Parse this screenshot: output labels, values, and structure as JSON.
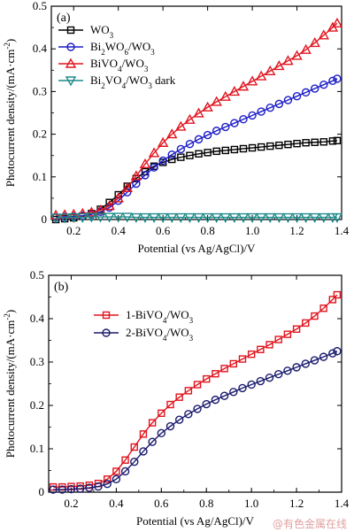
{
  "watermark": "@有色金属在线",
  "chart_data": [
    {
      "type": "line",
      "panel": "(a)",
      "xlabel": "Potential (vs Ag/AgCl)/V",
      "ylabel": "Photocurrent density/(mA·cm⁻²)",
      "xlim": [
        0.1,
        1.4
      ],
      "ylim": [
        0,
        0.5
      ],
      "xticks": [
        "0.2",
        "0.4",
        "0.6",
        "0.8",
        "1.0",
        "1.2",
        "1.4"
      ],
      "yticks": [
        "0",
        "0.1",
        "0.2",
        "0.3",
        "0.4",
        "0.5"
      ],
      "legend_position": "top-left",
      "series": [
        {
          "name": "WO3",
          "label_parts": [
            [
              "WO",
              ""
            ],
            [
              "3",
              "sub"
            ]
          ],
          "color": "#000000",
          "marker": "square",
          "x": [
            0.12,
            0.16,
            0.2,
            0.24,
            0.28,
            0.32,
            0.36,
            0.4,
            0.44,
            0.48,
            0.52,
            0.56,
            0.6,
            0.64,
            0.68,
            0.72,
            0.76,
            0.8,
            0.84,
            0.88,
            0.92,
            0.96,
            1.0,
            1.04,
            1.08,
            1.12,
            1.16,
            1.2,
            1.24,
            1.28,
            1.32,
            1.36,
            1.38
          ],
          "y": [
            0.0,
            0.002,
            0.004,
            0.008,
            0.014,
            0.024,
            0.04,
            0.058,
            0.078,
            0.096,
            0.112,
            0.125,
            0.134,
            0.141,
            0.146,
            0.15,
            0.154,
            0.157,
            0.16,
            0.162,
            0.164,
            0.166,
            0.168,
            0.17,
            0.172,
            0.174,
            0.176,
            0.178,
            0.18,
            0.181,
            0.182,
            0.184,
            0.185
          ]
        },
        {
          "name": "Bi2WO6/WO3",
          "label_parts": [
            [
              "Bi",
              ""
            ],
            [
              "2",
              "sub"
            ],
            [
              "WO",
              ""
            ],
            [
              "6",
              "sub"
            ],
            [
              "/WO",
              ""
            ],
            [
              "3",
              "sub"
            ]
          ],
          "color": "#1c1cc8",
          "marker": "circle",
          "x": [
            0.12,
            0.16,
            0.2,
            0.24,
            0.28,
            0.32,
            0.36,
            0.4,
            0.44,
            0.48,
            0.52,
            0.56,
            0.6,
            0.64,
            0.68,
            0.72,
            0.76,
            0.8,
            0.84,
            0.88,
            0.92,
            0.96,
            1.0,
            1.04,
            1.08,
            1.12,
            1.16,
            1.2,
            1.24,
            1.28,
            1.32,
            1.36,
            1.38
          ],
          "y": [
            0.005,
            0.006,
            0.007,
            0.009,
            0.012,
            0.018,
            0.028,
            0.044,
            0.064,
            0.084,
            0.104,
            0.122,
            0.138,
            0.152,
            0.165,
            0.177,
            0.188,
            0.198,
            0.208,
            0.217,
            0.226,
            0.235,
            0.244,
            0.253,
            0.262,
            0.271,
            0.28,
            0.289,
            0.298,
            0.307,
            0.316,
            0.325,
            0.33
          ]
        },
        {
          "name": "BiVO4/WO3",
          "label_parts": [
            [
              "BiVO",
              ""
            ],
            [
              "4",
              "sub"
            ],
            [
              "/WO",
              ""
            ],
            [
              "3",
              "sub"
            ]
          ],
          "color": "#e0151f",
          "marker": "triangle-up",
          "x": [
            0.12,
            0.16,
            0.2,
            0.24,
            0.28,
            0.32,
            0.36,
            0.4,
            0.44,
            0.48,
            0.52,
            0.56,
            0.6,
            0.64,
            0.68,
            0.72,
            0.76,
            0.8,
            0.84,
            0.88,
            0.92,
            0.96,
            1.0,
            1.04,
            1.08,
            1.12,
            1.16,
            1.2,
            1.24,
            1.28,
            1.32,
            1.36,
            1.38
          ],
          "y": [
            0.01,
            0.011,
            0.012,
            0.014,
            0.017,
            0.022,
            0.032,
            0.05,
            0.074,
            0.102,
            0.13,
            0.156,
            0.18,
            0.2,
            0.218,
            0.234,
            0.249,
            0.263,
            0.276,
            0.288,
            0.3,
            0.312,
            0.324,
            0.336,
            0.348,
            0.36,
            0.372,
            0.384,
            0.398,
            0.414,
            0.432,
            0.45,
            0.46
          ]
        },
        {
          "name": "Bi2VO4/WO3 dark",
          "label_parts": [
            [
              "Bi",
              ""
            ],
            [
              "2",
              "sub"
            ],
            [
              "VO",
              ""
            ],
            [
              "4",
              "sub"
            ],
            [
              "/WO",
              ""
            ],
            [
              "3",
              "sub"
            ],
            [
              " dark",
              ""
            ]
          ],
          "color": "#1f8a8a",
          "marker": "triangle-down",
          "x": [
            0.12,
            0.16,
            0.2,
            0.24,
            0.28,
            0.32,
            0.36,
            0.4,
            0.44,
            0.48,
            0.52,
            0.56,
            0.6,
            0.64,
            0.68,
            0.72,
            0.76,
            0.8,
            0.84,
            0.88,
            0.92,
            0.96,
            1.0,
            1.04,
            1.08,
            1.12,
            1.16,
            1.2,
            1.24,
            1.28,
            1.32,
            1.36,
            1.38
          ],
          "y": [
            0.004,
            0.004,
            0.005,
            0.005,
            0.006,
            0.006,
            0.006,
            0.006,
            0.006,
            0.005,
            0.005,
            0.005,
            0.005,
            0.005,
            0.005,
            0.005,
            0.005,
            0.005,
            0.005,
            0.005,
            0.005,
            0.005,
            0.005,
            0.005,
            0.005,
            0.005,
            0.005,
            0.005,
            0.005,
            0.005,
            0.005,
            0.005,
            0.005
          ]
        }
      ]
    },
    {
      "type": "line",
      "panel": "(b)",
      "xlabel": "Potential (vs Ag/AgCl)/V",
      "ylabel": "Photocurrent density/(mA·cm⁻²)",
      "xlim": [
        0.1,
        1.4
      ],
      "ylim": [
        0,
        0.5
      ],
      "xticks": [
        "0.2",
        "0.4",
        "0.6",
        "0.8",
        "1.0",
        "1.2",
        "1.4"
      ],
      "yticks": [
        "0",
        "0.1",
        "0.2",
        "0.3",
        "0.4",
        "0.5"
      ],
      "legend_position": "top-left",
      "series": [
        {
          "name": "1-BiVO4/WO3",
          "label_parts": [
            [
              "1-BiVO",
              ""
            ],
            [
              "4",
              "sub"
            ],
            [
              "/WO",
              ""
            ],
            [
              "3",
              "sub"
            ]
          ],
          "color": "#e0151f",
          "marker": "square",
          "x": [
            0.12,
            0.16,
            0.2,
            0.24,
            0.28,
            0.32,
            0.36,
            0.4,
            0.44,
            0.48,
            0.52,
            0.56,
            0.6,
            0.64,
            0.68,
            0.72,
            0.76,
            0.8,
            0.84,
            0.88,
            0.92,
            0.96,
            1.0,
            1.04,
            1.08,
            1.12,
            1.16,
            1.2,
            1.24,
            1.28,
            1.32,
            1.36,
            1.38
          ],
          "y": [
            0.012,
            0.012,
            0.013,
            0.014,
            0.016,
            0.02,
            0.03,
            0.048,
            0.074,
            0.104,
            0.134,
            0.16,
            0.182,
            0.202,
            0.219,
            0.234,
            0.248,
            0.261,
            0.273,
            0.285,
            0.296,
            0.307,
            0.318,
            0.329,
            0.34,
            0.352,
            0.364,
            0.376,
            0.39,
            0.406,
            0.424,
            0.444,
            0.455
          ]
        },
        {
          "name": "2-BiVO4/WO3",
          "label_parts": [
            [
              "2-BiVO",
              ""
            ],
            [
              "4",
              "sub"
            ],
            [
              "/WO",
              ""
            ],
            [
              "3",
              "sub"
            ]
          ],
          "color": "#1a1a6e",
          "marker": "circle",
          "x": [
            0.12,
            0.16,
            0.2,
            0.24,
            0.28,
            0.32,
            0.36,
            0.4,
            0.44,
            0.48,
            0.52,
            0.56,
            0.6,
            0.64,
            0.68,
            0.72,
            0.76,
            0.8,
            0.84,
            0.88,
            0.92,
            0.96,
            1.0,
            1.04,
            1.08,
            1.12,
            1.16,
            1.2,
            1.24,
            1.28,
            1.32,
            1.36,
            1.38
          ],
          "y": [
            0.006,
            0.006,
            0.007,
            0.008,
            0.01,
            0.013,
            0.019,
            0.03,
            0.048,
            0.07,
            0.094,
            0.116,
            0.136,
            0.152,
            0.167,
            0.18,
            0.192,
            0.203,
            0.213,
            0.222,
            0.231,
            0.24,
            0.248,
            0.256,
            0.264,
            0.272,
            0.28,
            0.288,
            0.296,
            0.304,
            0.312,
            0.32,
            0.325
          ]
        }
      ]
    }
  ]
}
